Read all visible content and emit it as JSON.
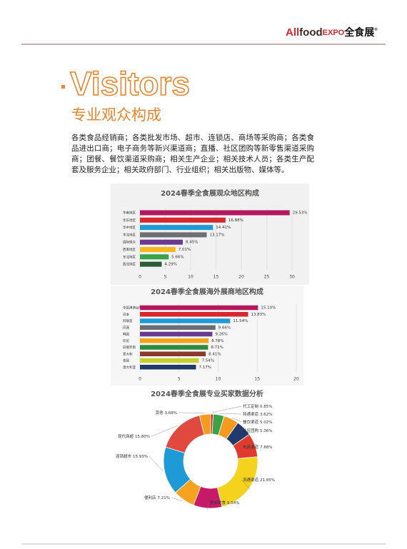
{
  "header": {
    "logo_all": "All",
    "logo_food": "food",
    "logo_expo": "EXPO",
    "logo_cn": "全食展",
    "logo_mark": "®"
  },
  "title": "Visitors",
  "subtitle": "专业观众构成",
  "paragraph": "各类食品经销商；各类批发市场、超市、连锁店、商场等采购商；各类食品进出口商；电子商务等新兴渠道商；直播、社区团购等新零售渠道采购商；团餐、餐饮渠道采购商；相关生产企业；相关技术人员；各类生产配套及服务企业；相关政府部门、行业组织；相关出版物、媒体等。",
  "chart_data": [
    {
      "type": "hbar",
      "title": "2024春季全食展观众地区构成",
      "categories": [
        "华南地区",
        "华东地区",
        "华中地区",
        "华北地区",
        "国际观众",
        "西南地区",
        "东北地区",
        "西北地区"
      ],
      "values": [
        29.53,
        16.88,
        14.41,
        13.17,
        8.45,
        7.01,
        5.66,
        4.29
      ],
      "value_labels": [
        "29.53%",
        "16.88%",
        "14.41%",
        "13.17%",
        "8.45%",
        "7.01%",
        "5.66%",
        "4.29%"
      ],
      "colors": [
        "#b5175f",
        "#d7262e",
        "#1e9bd7",
        "#6d6e71",
        "#6a3a8e",
        "#f5b81e",
        "#3aa348",
        "#2d5a35"
      ],
      "xlim": [
        0,
        30
      ],
      "xticks": [
        0,
        5,
        10,
        15,
        20,
        25,
        30
      ],
      "grid": true
    },
    {
      "type": "hbar",
      "title": "2024春季全食展海外展商地区构成",
      "categories": [
        "中国港澳台地区",
        "日本",
        "阿联酋",
        "巴西",
        "韩国",
        "印尼",
        "白俄罗斯",
        "意大利",
        "泰国",
        "澳大利亚"
      ],
      "values": [
        15.1,
        13.83,
        11.54,
        9.66,
        9.26,
        8.78,
        8.71,
        8.41,
        7.54,
        7.17
      ],
      "value_labels": [
        "15.10%",
        "13.83%",
        "11.54%",
        "9.66%",
        "9.26%",
        "8.78%",
        "8.71%",
        "8.41%",
        "7.54%",
        "7.17%"
      ],
      "colors": [
        "#b5175f",
        "#d7262e",
        "#1e9bd7",
        "#6d6e71",
        "#6a3a8e",
        "#f5a21e",
        "#2e8b3e",
        "#8b3a2e",
        "#c3d12f",
        "#1f3a6b"
      ],
      "xlim": [
        0,
        20
      ],
      "xticks": [
        0,
        5,
        10,
        15,
        20
      ],
      "grid": true
    },
    {
      "type": "donut",
      "title": "2024春季全食展专业买家数据分析",
      "categories": [
        "代工定制",
        "特通渠道",
        "餐饮渠道",
        "社区团购",
        "电商渠道",
        "流通渠道",
        "量贩零食",
        "便利店",
        "连锁超市",
        "现代商超",
        "其他"
      ],
      "values": [
        0.85,
        3.62,
        5.02,
        5.36,
        7.88,
        21.85,
        9.54,
        7.21,
        15.93,
        15.8,
        3.68
      ],
      "value_labels": [
        "0.85%",
        "3.62%",
        "5.02%",
        "5.36%",
        "7.88%",
        "21.85%",
        "9.54%",
        "7.21%",
        "15.93%",
        "15.80%",
        "3.68%"
      ],
      "colors": [
        "#d7262e",
        "#3aa348",
        "#f39a1f",
        "#1f3a6b",
        "#e03a2e",
        "#f5d21e",
        "#c8186a",
        "#f5a21e",
        "#1e9bd7",
        "#e04a3e",
        "#f39a1f"
      ]
    }
  ]
}
